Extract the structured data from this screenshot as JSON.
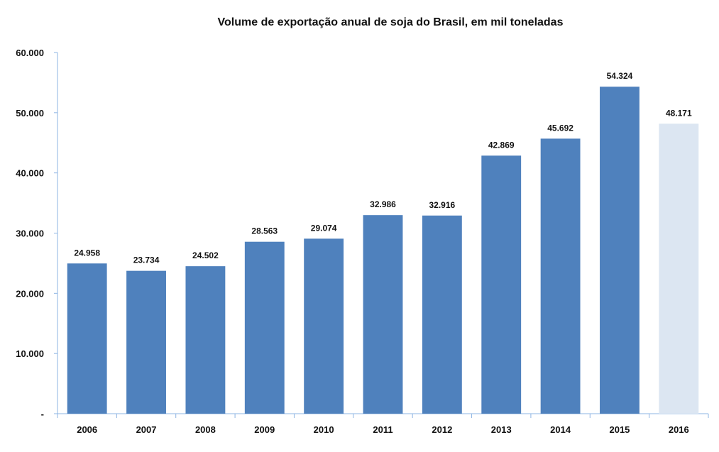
{
  "chart_data": {
    "type": "bar",
    "title": "Volume de exportação anual de soja do Brasil, em mil toneladas",
    "xlabel": "",
    "ylabel": "",
    "ylim": [
      0,
      60000
    ],
    "y_ticks": [
      0,
      10000,
      20000,
      30000,
      40000,
      50000,
      60000
    ],
    "y_tick_labels": [
      "-",
      "10.000",
      "20.000",
      "30.000",
      "40.000",
      "50.000",
      "60.000"
    ],
    "grid": false,
    "legend": "none",
    "categories": [
      "2006",
      "2007",
      "2008",
      "2009",
      "2010",
      "2011",
      "2012",
      "2013",
      "2014",
      "2015",
      "2016"
    ],
    "values": [
      24958,
      23734,
      24502,
      28563,
      29074,
      32986,
      32916,
      42869,
      45692,
      54324,
      48171
    ],
    "value_labels": [
      "24.958",
      "23.734",
      "24.502",
      "28.563",
      "29.074",
      "32.986",
      "32.916",
      "42.869",
      "45.692",
      "54.324",
      "48.171"
    ],
    "colors": {
      "bar": "#4f81bd",
      "bar_highlight": "#dce6f2",
      "axis": "#8eb4e3"
    },
    "highlight_index": 10
  }
}
